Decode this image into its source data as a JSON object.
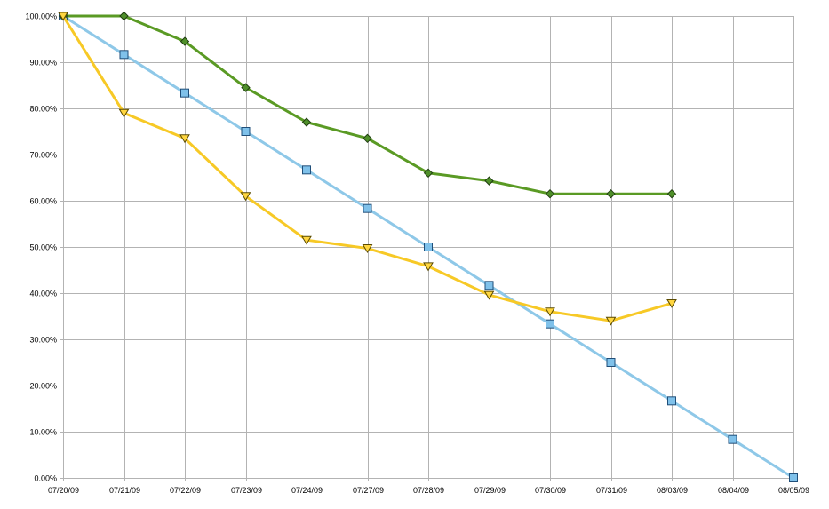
{
  "chart_data": {
    "type": "line",
    "title": "",
    "xlabel": "",
    "ylabel": "",
    "categories": [
      "07/20/09",
      "07/21/09",
      "07/22/09",
      "07/23/09",
      "07/24/09",
      "07/27/09",
      "07/28/09",
      "07/29/09",
      "07/30/09",
      "07/31/09",
      "08/03/09",
      "08/04/09",
      "08/05/09"
    ],
    "ylim": [
      0,
      100
    ],
    "ytick_step": 10,
    "ytick_format": "percent_2dp",
    "grid": true,
    "legend": "none",
    "series": [
      {
        "color": "#8ec8e8",
        "marker": "square",
        "marker_fill": "#7fc1ea",
        "marker_stroke": "#1f4e79",
        "values": [
          100,
          91.67,
          83.33,
          75,
          66.67,
          58.33,
          50,
          41.67,
          33.33,
          25,
          16.67,
          8.33,
          0
        ]
      },
      {
        "color": "#5a9a24",
        "marker": "diamond",
        "marker_fill": "#4f8f2a",
        "marker_stroke": "#1f3d0f",
        "values": [
          100,
          100,
          94.5,
          84.5,
          77,
          73.5,
          66,
          64.3,
          61.5,
          61.5,
          61.5,
          null,
          null
        ]
      },
      {
        "color": "#f7c926",
        "marker": "triangle-down",
        "marker_fill": "#ffd640",
        "marker_stroke": "#5a4a00",
        "values": [
          100,
          79,
          73.5,
          61,
          51.5,
          49.7,
          45.8,
          39.6,
          36,
          34,
          37.8,
          null,
          null
        ]
      }
    ]
  }
}
